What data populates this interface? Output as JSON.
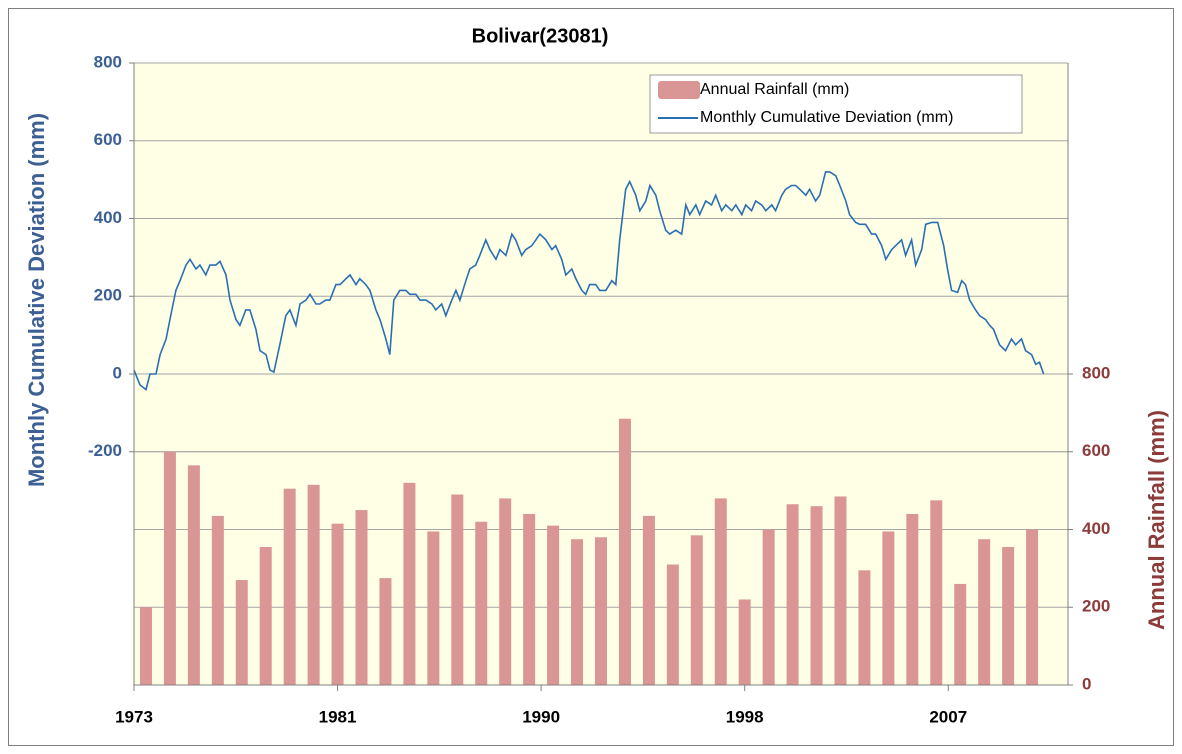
{
  "chart_data": {
    "type": "combo",
    "title": "Bolivar(23081)",
    "ylabel": "Monthly Cumulative Deviation (mm)",
    "y2label": "Annual Rainfall (mm)",
    "xlim": [
      1973,
      2012
    ],
    "xticks": [
      1973,
      {
        "value": 1981.5,
        "label": "1981"
      },
      1990,
      {
        "value": 1998.5,
        "label": "1998"
      },
      2007
    ],
    "ylim": [
      -800,
      800
    ],
    "yticks": [
      -200,
      0,
      200,
      400,
      600,
      800
    ],
    "y2lim": [
      0,
      1600
    ],
    "y2ticks": [
      0,
      200,
      400,
      600,
      800
    ],
    "grid": true,
    "legend": "upper right",
    "series": [
      {
        "name": "Annual Rainfall (mm)",
        "type": "bar",
        "axis": "y2",
        "color": "#d99694",
        "x": [
          1973,
          1974,
          1975,
          1976,
          1977,
          1978,
          1979,
          1980,
          1981,
          1982,
          1983,
          1984,
          1985,
          1986,
          1987,
          1988,
          1989,
          1990,
          1991,
          1992,
          1993,
          1994,
          1995,
          1996,
          1997,
          1998,
          1999,
          2000,
          2001,
          2002,
          2003,
          2004,
          2005,
          2006,
          2007,
          2008,
          2009,
          2010
        ],
        "values": [
          200,
          600,
          565,
          435,
          270,
          355,
          505,
          515,
          415,
          450,
          275,
          520,
          395,
          490,
          420,
          480,
          440,
          410,
          375,
          380,
          685,
          435,
          310,
          385,
          480,
          220,
          400,
          465,
          460,
          485,
          295,
          395,
          440,
          475,
          260,
          375,
          355,
          400
        ]
      },
      {
        "name": "Monthly Cumulative Deviation (mm)",
        "type": "line",
        "color": "#2a6fb5",
        "x": [
          1973.0,
          1973.25,
          1973.5,
          1973.67,
          1973.92,
          1974.09,
          1974.34,
          1974.5,
          1974.75,
          1974.92,
          1975.17,
          1975.34,
          1975.59,
          1975.75,
          1976.0,
          1976.17,
          1976.42,
          1976.59,
          1976.84,
          1977.01,
          1977.26,
          1977.42,
          1977.67,
          1977.84,
          1978.09,
          1978.26,
          1978.51,
          1978.68,
          1978.84,
          1979.09,
          1979.34,
          1979.51,
          1979.76,
          1979.93,
          1980.18,
          1980.35,
          1980.6,
          1980.76,
          1981.01,
          1981.18,
          1981.43,
          1981.6,
          1981.85,
          1982.02,
          1982.27,
          1982.43,
          1982.68,
          1982.85,
          1983.1,
          1983.27,
          1983.52,
          1983.68,
          1983.85,
          1984.1,
          1984.35,
          1984.52,
          1984.77,
          1984.94,
          1985.19,
          1985.44,
          1985.6,
          1985.85,
          1986.02,
          1986.27,
          1986.44,
          1986.61,
          1986.86,
          1987.02,
          1987.27,
          1987.44,
          1987.69,
          1987.86,
          1988.11,
          1988.28,
          1988.53,
          1988.78,
          1988.94,
          1989.19,
          1989.36,
          1989.61,
          1989.95,
          1990.2,
          1990.45,
          1990.61,
          1990.86,
          1991.03,
          1991.28,
          1991.45,
          1991.7,
          1991.86,
          1992.03,
          1992.28,
          1992.45,
          1992.7,
          1992.95,
          1993.12,
          1993.28,
          1993.53,
          1993.7,
          1993.95,
          1994.12,
          1994.37,
          1994.54,
          1994.79,
          1994.95,
          1995.2,
          1995.37,
          1995.62,
          1995.87,
          1996.04,
          1996.21,
          1996.46,
          1996.62,
          1996.87,
          1997.12,
          1997.29,
          1997.54,
          1997.71,
          1997.96,
          1998.13,
          1998.38,
          1998.54,
          1998.79,
          1998.96,
          1999.21,
          1999.38,
          1999.63,
          1999.79,
          2000.05,
          2000.21,
          2000.46,
          2000.63,
          2000.8,
          2001.05,
          2001.21,
          2001.46,
          2001.63,
          2001.88,
          2002.05,
          2002.3,
          2002.47,
          2002.72,
          2002.88,
          2003.13,
          2003.3,
          2003.55,
          2003.8,
          2003.97,
          2004.22,
          2004.39,
          2004.64,
          2004.8,
          2005.05,
          2005.22,
          2005.47,
          2005.64,
          2005.89,
          2006.06,
          2006.31,
          2006.56,
          2006.81,
          2006.97,
          2007.14,
          2007.39,
          2007.56,
          2007.72,
          2007.89,
          2008.14,
          2008.31,
          2008.56,
          2008.73,
          2008.89,
          2009.14,
          2009.39,
          2009.64,
          2009.81,
          2010.06,
          2010.23,
          2010.48,
          2010.65,
          2010.81,
          2010.98
        ],
        "values": [
          10,
          -28,
          -40,
          0,
          0,
          50,
          90,
          140,
          215,
          240,
          280,
          295,
          270,
          280,
          255,
          280,
          280,
          290,
          255,
          190,
          140,
          125,
          165,
          165,
          115,
          60,
          50,
          10,
          5,
          75,
          150,
          165,
          125,
          180,
          190,
          205,
          180,
          180,
          190,
          190,
          230,
          230,
          245,
          255,
          230,
          245,
          230,
          215,
          165,
          140,
          90,
          50,
          190,
          215,
          215,
          205,
          205,
          190,
          190,
          180,
          165,
          180,
          150,
          190,
          215,
          190,
          240,
          270,
          280,
          305,
          345,
          320,
          295,
          320,
          305,
          360,
          345,
          305,
          320,
          330,
          360,
          345,
          320,
          330,
          295,
          255,
          270,
          245,
          215,
          205,
          230,
          230,
          215,
          215,
          240,
          230,
          345,
          475,
          495,
          460,
          420,
          445,
          485,
          460,
          420,
          370,
          360,
          370,
          360,
          435,
          410,
          435,
          410,
          445,
          435,
          460,
          420,
          435,
          420,
          435,
          410,
          435,
          420,
          445,
          435,
          420,
          435,
          420,
          460,
          475,
          485,
          485,
          475,
          460,
          475,
          445,
          460,
          520,
          520,
          510,
          485,
          445,
          410,
          390,
          385,
          385,
          360,
          360,
          330,
          295,
          320,
          330,
          345,
          305,
          345,
          280,
          320,
          385,
          390,
          390,
          330,
          270,
          215,
          210,
          240,
          230,
          190,
          165,
          150,
          140,
          125,
          115,
          75,
          60,
          90,
          75,
          90,
          60,
          50,
          25,
          30,
          0
        ]
      }
    ]
  }
}
